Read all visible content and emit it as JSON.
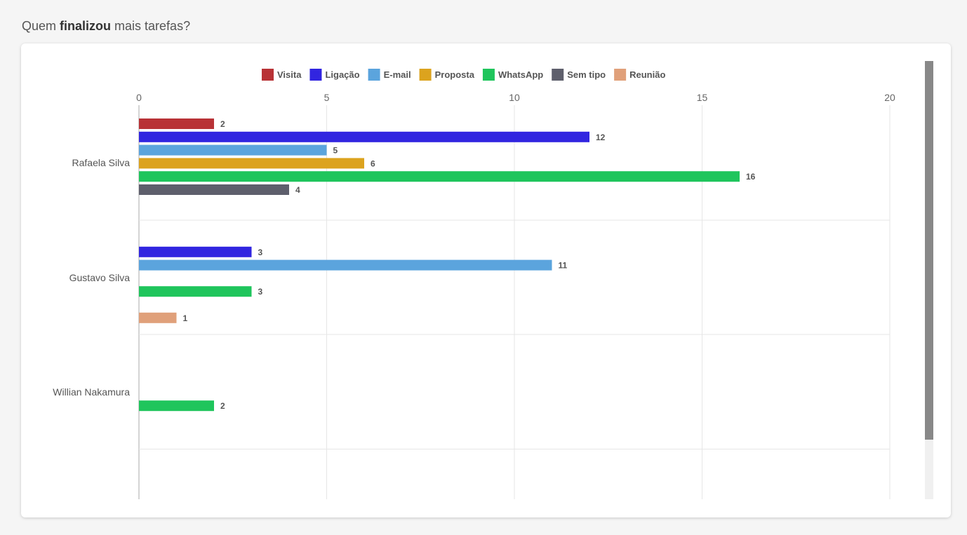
{
  "header": {
    "title_prefix": "Quem ",
    "title_bold": "finalizou",
    "title_suffix": " mais tarefas?"
  },
  "colors": {
    "Visita": "#b83236",
    "Ligação": "#3125e0",
    "E-mail": "#5ba4dd",
    "Proposta": "#dca31e",
    "WhatsApp": "#1fc55c",
    "Sem tipo": "#5e5f6c",
    "Reunião": "#e0a07a"
  },
  "chart_data": {
    "type": "bar",
    "orientation": "horizontal",
    "x_axis_position": "top",
    "xlim": [
      0,
      20
    ],
    "x_ticks": [
      0,
      5,
      10,
      15,
      20
    ],
    "grid": true,
    "legend": "top-center",
    "categories": [
      "Rafaela Silva",
      "Gustavo Silva",
      "Willian Nakamura"
    ],
    "series": [
      {
        "name": "Visita",
        "values": [
          2,
          null,
          null
        ]
      },
      {
        "name": "Ligação",
        "values": [
          12,
          3,
          null
        ]
      },
      {
        "name": "E-mail",
        "values": [
          5,
          11,
          null
        ]
      },
      {
        "name": "Proposta",
        "values": [
          6,
          null,
          null
        ]
      },
      {
        "name": "WhatsApp",
        "values": [
          16,
          3,
          2
        ]
      },
      {
        "name": "Sem tipo",
        "values": [
          4,
          null,
          null
        ]
      },
      {
        "name": "Reunião",
        "values": [
          null,
          1,
          null
        ]
      }
    ]
  }
}
